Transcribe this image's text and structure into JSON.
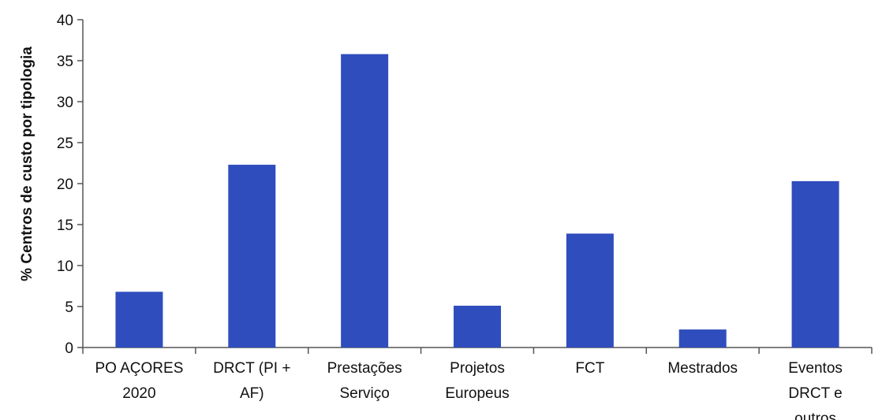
{
  "chart_data": {
    "type": "bar",
    "title": "",
    "xlabel": "",
    "ylabel": "% Centros de custo por tipologia",
    "ylim": [
      0,
      40
    ],
    "yticks": [
      0,
      5,
      10,
      15,
      20,
      25,
      30,
      35,
      40
    ],
    "grid": false,
    "categories": [
      [
        "PO AÇORES",
        "2020"
      ],
      [
        "DRCT (PI +",
        "AF)"
      ],
      [
        "Prestações",
        "Serviço"
      ],
      [
        "Projetos",
        "Europeus"
      ],
      [
        "FCT"
      ],
      [
        "Mestrados"
      ],
      [
        "Eventos",
        "DRCT e",
        "outros"
      ]
    ],
    "values": [
      6.8,
      22.3,
      35.8,
      5.1,
      13.9,
      2.2,
      20.3
    ],
    "bar_color": "#2f4dbd",
    "axis_color": "#555555"
  }
}
